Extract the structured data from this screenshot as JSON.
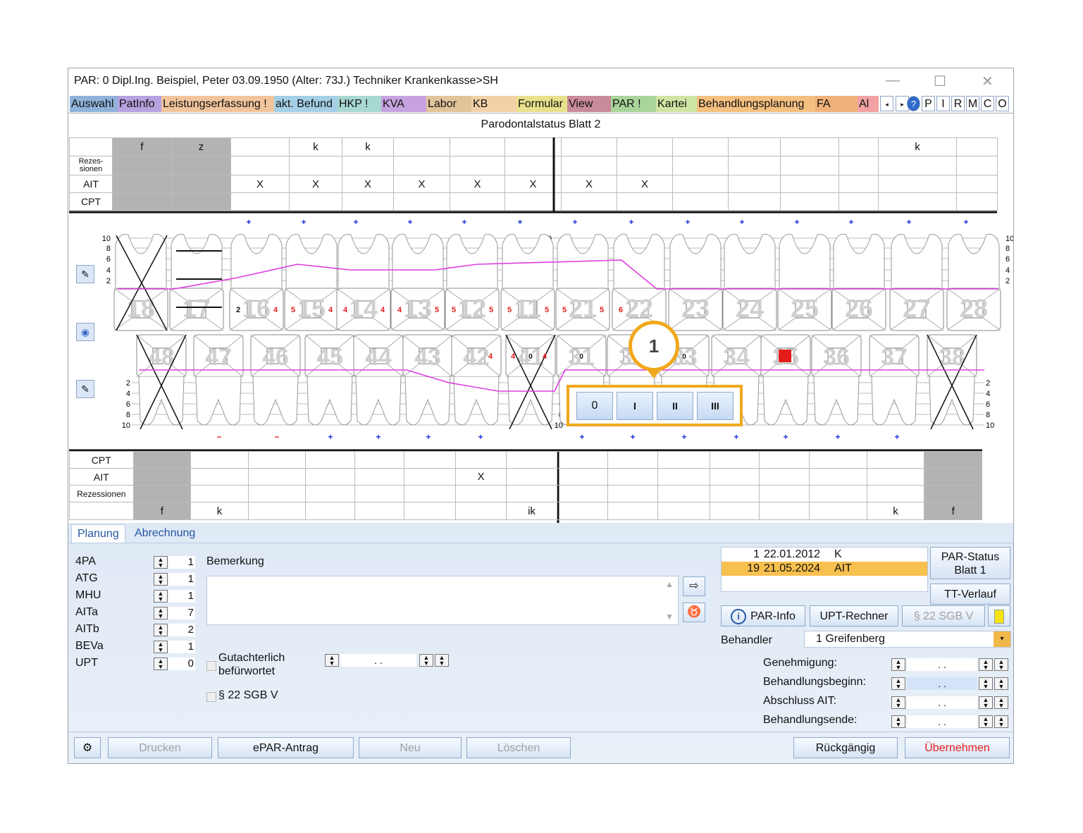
{
  "window": {
    "title": "PAR: 0  Dipl.Ing. Beispiel, Peter  03.09.1950 (Alter: 73J.)  Techniker Krankenkasse>SH"
  },
  "tabs": [
    {
      "label": "Auswahl",
      "color": "#8fb2d9"
    },
    {
      "label": "PatInfo",
      "color": "#b7a2e0"
    },
    {
      "label": "Leistungserfassung !",
      "color": "#f2c49c"
    },
    {
      "label": "akt. Befund",
      "color": "#a4cfe6"
    },
    {
      "label": "HKP !",
      "color": "#a7d8d2"
    },
    {
      "label": "KVA",
      "color": "#c7a2e0"
    },
    {
      "label": "Labor",
      "color": "#e2c49b"
    },
    {
      "label": "KB",
      "color": "#f2d0a8"
    },
    {
      "label": "Formular",
      "color": "#e8e08a"
    },
    {
      "label": "View",
      "color": "#c98a9a"
    },
    {
      "label": "PAR !",
      "color": "#a9d49a"
    },
    {
      "label": "Kartei",
      "color": "#cfe5a3"
    },
    {
      "label": "Behandlungsplanung",
      "color": "#f4c080"
    },
    {
      "label": "FA",
      "color": "#f0b27a"
    },
    {
      "label": "Al",
      "color": "#f2a2a2"
    }
  ],
  "right_buttons": [
    "?",
    "P",
    "I",
    "R",
    "M",
    "C",
    "O"
  ],
  "sheet_title": "Parodontalstatus Blatt 2",
  "upper_table": {
    "row_labels": [
      "Rezes-\nsionen",
      "AIT",
      "CPT"
    ],
    "cols": [
      {
        "head": "f",
        "ait": ""
      },
      {
        "head": "z",
        "ait": ""
      },
      {
        "head": "",
        "ait": "X"
      },
      {
        "head": "k",
        "ait": "X"
      },
      {
        "head": "k",
        "ait": "X"
      },
      {
        "head": "",
        "ait": "X"
      },
      {
        "head": "",
        "ait": "X"
      },
      {
        "head": "",
        "ait": "X"
      },
      {
        "head": "",
        "ait": "X"
      },
      {
        "head": "",
        "ait": "X"
      },
      {
        "head": "",
        "ait": ""
      },
      {
        "head": "",
        "ait": ""
      },
      {
        "head": "",
        "ait": ""
      },
      {
        "head": "",
        "ait": ""
      },
      {
        "head": "k",
        "ait": ""
      },
      {
        "head": "",
        "ait": ""
      }
    ]
  },
  "upper_teeth": [
    "18",
    "17",
    "16",
    "15",
    "14",
    "13",
    "12",
    "11",
    "21",
    "22",
    "23",
    "24",
    "25",
    "26",
    "27",
    "28"
  ],
  "lower_teeth": [
    "48",
    "47",
    "46",
    "45",
    "44",
    "43",
    "42",
    "41",
    "31",
    "32",
    "33",
    "34",
    "35",
    "36",
    "37",
    "38"
  ],
  "scale": [
    "10",
    "8",
    "6",
    "4",
    "2"
  ],
  "pocket_values_upper": [
    {
      "tooth": "16",
      "l": "2",
      "r": "4"
    },
    {
      "tooth": "15",
      "l": "5",
      "r": "4"
    },
    {
      "tooth": "14",
      "l": "4",
      "r": "4"
    },
    {
      "tooth": "13",
      "l": "4",
      "r": "5"
    },
    {
      "tooth": "12",
      "l": "5",
      "r": "5"
    },
    {
      "tooth": "11",
      "l": "5",
      "r": "5"
    },
    {
      "tooth": "21",
      "l": "5",
      "r": "5"
    },
    {
      "tooth": "22",
      "l": "6",
      "r": ""
    }
  ],
  "pocket_values_lower": [
    {
      "tooth": "42",
      "l": "",
      "r": "4"
    },
    {
      "tooth": "41",
      "l": "4",
      "m": "0",
      "r": "4"
    },
    {
      "tooth": "31",
      "l": "",
      "m": "0",
      "r": ""
    },
    {
      "tooth": "33",
      "l": "",
      "m": "0",
      "r": ""
    }
  ],
  "callout": {
    "number": "1"
  },
  "furcation_buttons": [
    "0",
    "I",
    "II",
    "III"
  ],
  "lower_table": {
    "row_labels": [
      "CPT",
      "AIT",
      "Rezessionen"
    ],
    "foot": [
      "f",
      "k",
      "",
      "",
      "",
      "",
      "",
      "ik",
      "",
      "",
      "",
      "",
      "",
      "",
      "k",
      "f"
    ],
    "ait": [
      "",
      "",
      "",
      "",
      "",
      "",
      "X",
      "",
      "",
      "",
      "",
      "",
      "",
      "",
      "",
      ""
    ]
  },
  "panel_tabs": [
    "Planung",
    "Abrechnung"
  ],
  "planning_rows": [
    {
      "label": "4PA",
      "value": "1"
    },
    {
      "label": "ATG",
      "value": "1"
    },
    {
      "label": "MHU",
      "value": "1"
    },
    {
      "label": "AITa",
      "value": "7"
    },
    {
      "label": "AITb",
      "value": "2"
    },
    {
      "label": "BEVa",
      "value": "1"
    },
    {
      "label": "UPT",
      "value": "0"
    }
  ],
  "remark_label": "Bemerkung",
  "gutachter_label": "Gutachterlich\nbefürwortet",
  "sgb_label": "§ 22 SGB V",
  "date_placeholder": ".   .",
  "history": [
    {
      "num": "1",
      "date": "22.01.2012",
      "code": "K",
      "selected": false
    },
    {
      "num": "19",
      "date": "21.05.2024",
      "code": "AIT",
      "selected": true
    }
  ],
  "buttons": {
    "par_status": "PAR-Status\nBlatt 1",
    "tt_verlauf": "TT-Verlauf",
    "par_info": "PAR-Info",
    "upt_rechner": "UPT-Rechner",
    "sgb": "§ 22 SGB V",
    "drucken": "Drucken",
    "epar": "ePAR-Antrag",
    "neu": "Neu",
    "loeschen": "Löschen",
    "rueckgaengig": "Rückgängig",
    "uebernehmen": "Übernehmen"
  },
  "behandler": {
    "label": "Behandler",
    "value": "1 Greifenberg"
  },
  "dates": [
    {
      "label": "Genehmigung:",
      "value": ".   ."
    },
    {
      "label": "Behandlungsbeginn:",
      "value": ".   ."
    },
    {
      "label": "Abschluss AIT:",
      "value": ".   ."
    },
    {
      "label": "Behandlungsende:",
      "value": ".   ."
    }
  ],
  "colors": {
    "accent": "#f0a81c",
    "pink": "#e03be0",
    "red": "#e51c1c",
    "blue": "#1a2fd6"
  }
}
